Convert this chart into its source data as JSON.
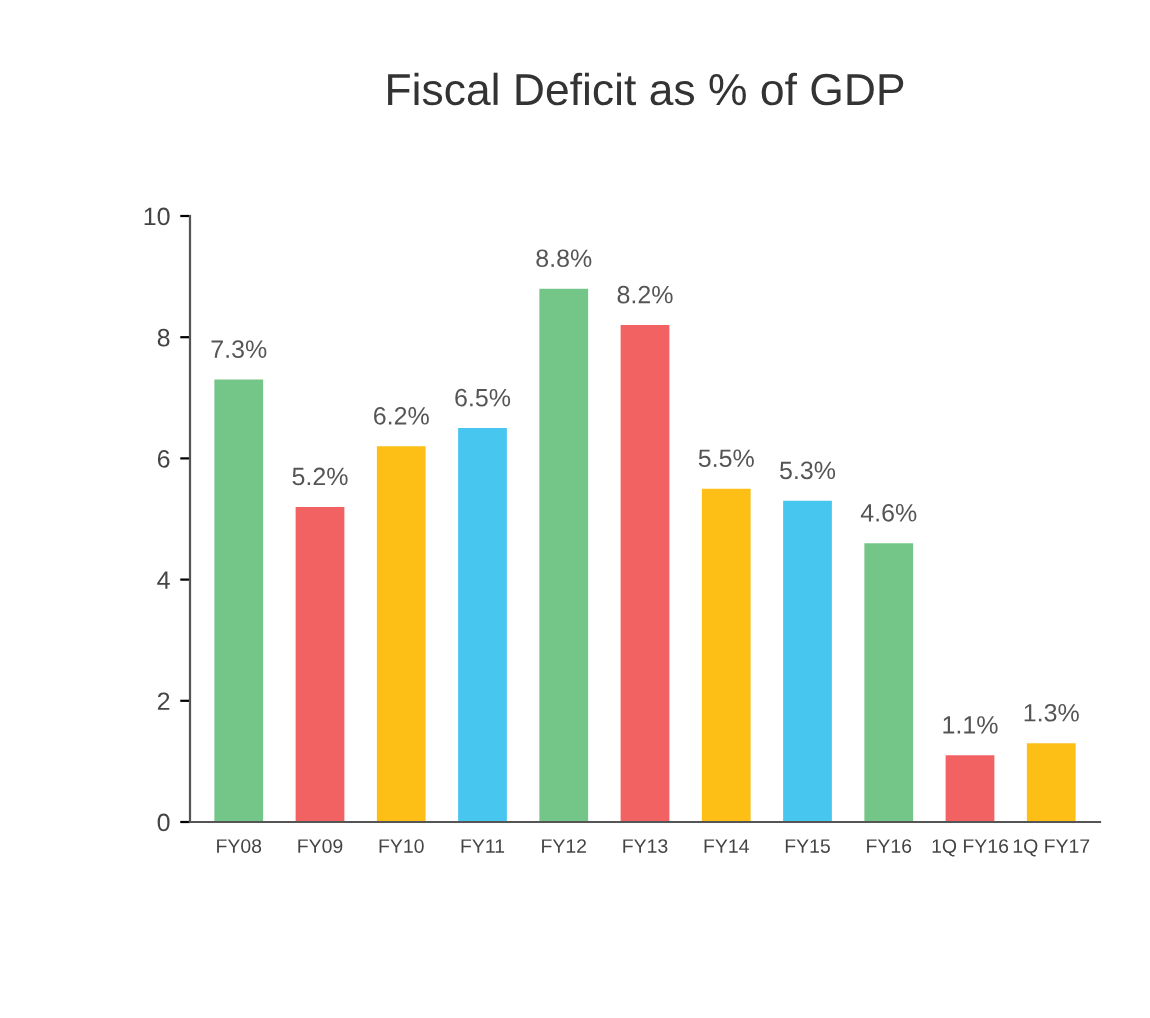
{
  "chart_data": {
    "type": "bar",
    "title": "Fiscal Deficit as % of GDP",
    "categories": [
      "FY08",
      "FY09",
      "FY10",
      "FY11",
      "FY12",
      "FY13",
      "FY14",
      "FY15",
      "FY16",
      "1Q FY16",
      "1Q FY17"
    ],
    "values": [
      7.3,
      5.2,
      6.2,
      6.5,
      8.8,
      8.2,
      5.5,
      5.3,
      4.6,
      1.1,
      1.3
    ],
    "value_labels": [
      "7.3%",
      "5.2%",
      "6.2%",
      "6.5%",
      "8.8%",
      "8.2%",
      "5.5%",
      "5.3%",
      "4.6%",
      "1.1%",
      "1.3%"
    ],
    "colors": [
      "#74c688",
      "#f26262",
      "#fdbf16",
      "#47c6ef",
      "#74c688",
      "#f26262",
      "#fdbf16",
      "#47c6ef",
      "#74c688",
      "#f26262",
      "#fdbf16"
    ],
    "ylim": [
      0,
      10
    ],
    "yticks": [
      0,
      2,
      4,
      6,
      8,
      10
    ],
    "grid": false,
    "legend": false
  }
}
